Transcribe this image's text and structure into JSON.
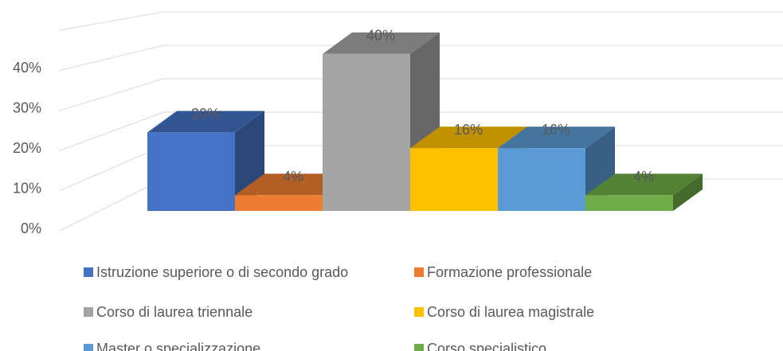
{
  "chart_data": {
    "type": "bar3d",
    "series": [
      {
        "name": "Istruzione superiore o di secondo grado",
        "color": "#4472c4",
        "values": [
          20
        ],
        "value_labels": [
          "20%"
        ]
      },
      {
        "name": "Formazione professionale",
        "color": "#ed7d31",
        "values": [
          4
        ],
        "value_labels": [
          "4%"
        ]
      },
      {
        "name": "Corso di laurea triennale",
        "color": "#a5a5a5",
        "values": [
          40
        ],
        "value_labels": [
          "40%"
        ]
      },
      {
        "name": "Corso di laurea magistrale",
        "color": "#ffc000",
        "values": [
          16
        ],
        "value_labels": [
          "16%"
        ]
      },
      {
        "name": "Master o specializzazione",
        "color": "#5b9bd5",
        "values": [
          16
        ],
        "value_labels": [
          "16%"
        ]
      },
      {
        "name": "Corso specialistico",
        "color": "#70ad47",
        "values": [
          4
        ],
        "value_labels": [
          "4%"
        ]
      }
    ],
    "ylim": [
      0,
      50
    ],
    "yticks": [
      {
        "value": 0,
        "label": "0%"
      },
      {
        "value": 10,
        "label": "10%"
      },
      {
        "value": 20,
        "label": "20%"
      },
      {
        "value": 30,
        "label": "30%"
      },
      {
        "value": 40,
        "label": "40%"
      }
    ],
    "grid": true
  }
}
